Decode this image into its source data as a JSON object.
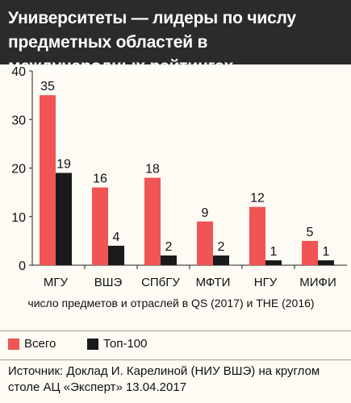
{
  "title": "Университеты — лидеры по числу предметных областей в международных рейтингах",
  "colors": {
    "total": "#f05454",
    "top100": "#1a1a1a",
    "header_bg": "#2b2b2b"
  },
  "chart_data": {
    "type": "bar",
    "categories": [
      "МГУ",
      "ВШЭ",
      "СПбГУ",
      "МФТИ",
      "НГУ",
      "МИФИ"
    ],
    "series": [
      {
        "name": "Всего",
        "values": [
          35,
          16,
          18,
          9,
          12,
          5
        ]
      },
      {
        "name": "Топ-100",
        "values": [
          19,
          4,
          2,
          2,
          1,
          1
        ]
      }
    ],
    "xlabel": "число предметов и отраслей в QS (2017) и THE (2016)",
    "ylabel": "",
    "ylim": [
      0,
      40
    ],
    "yticks": [
      0,
      10,
      20,
      30,
      40
    ],
    "grid": false,
    "legend": "bottom-left"
  },
  "source": "Источник: Доклад И. Карелиной (НИУ ВШЭ) на круглом столе АЦ «Эксперт» 13.04.2017"
}
